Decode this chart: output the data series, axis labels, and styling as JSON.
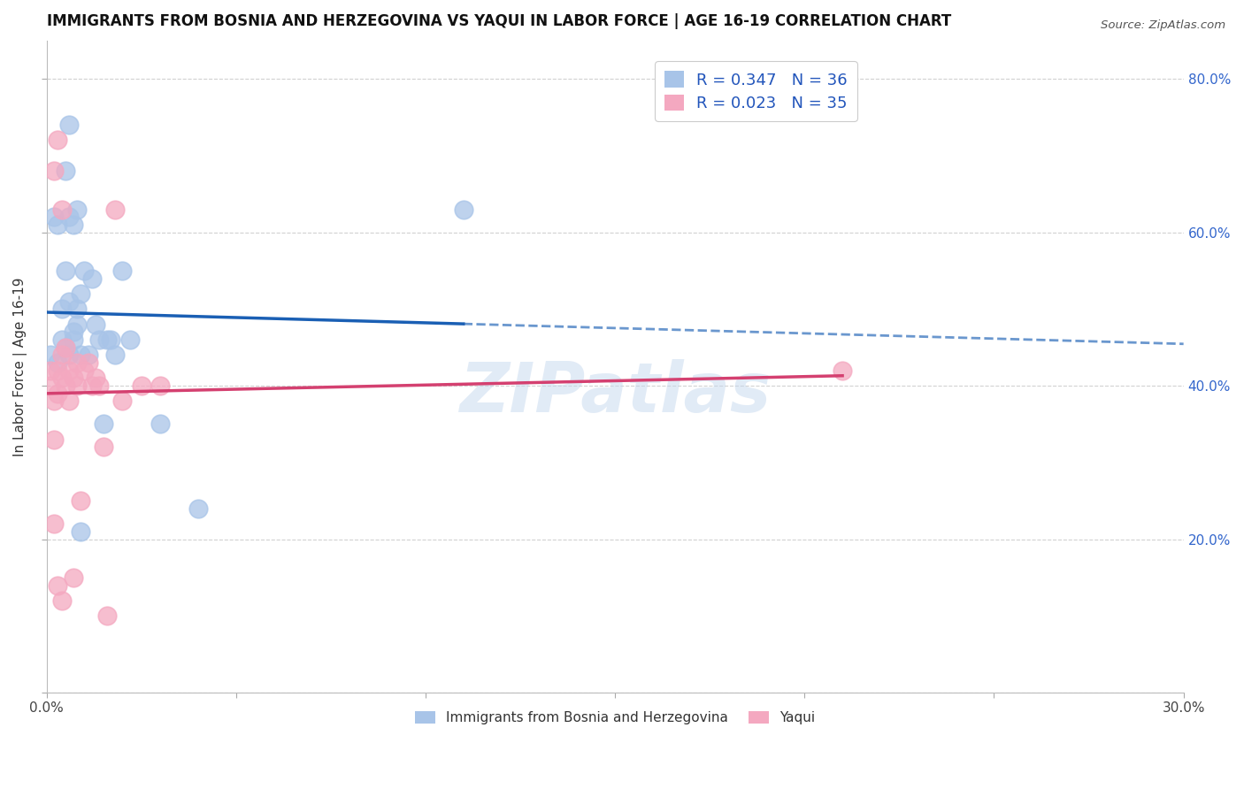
{
  "title": "IMMIGRANTS FROM BOSNIA AND HERZEGOVINA VS YAQUI IN LABOR FORCE | AGE 16-19 CORRELATION CHART",
  "source": "Source: ZipAtlas.com",
  "ylabel": "In Labor Force | Age 16-19",
  "legend_bosnia_R": "0.347",
  "legend_bosnia_N": "36",
  "legend_yaqui_R": "0.023",
  "legend_yaqui_N": "35",
  "legend_label_1": "Immigrants from Bosnia and Herzegovina",
  "legend_label_2": "Yaqui",
  "watermark": "ZIPatlas",
  "xlim": [
    0.0,
    0.3
  ],
  "ylim": [
    0.0,
    0.85
  ],
  "bosnia_color": "#a8c4e8",
  "yaqui_color": "#f4a8c0",
  "bosnia_line_color": "#1a5fb4",
  "yaqui_line_color": "#d44070",
  "grid_color": "#cccccc",
  "background_color": "#ffffff",
  "bosnia_scatter_x": [
    0.001,
    0.002,
    0.003,
    0.004,
    0.005,
    0.005,
    0.006,
    0.006,
    0.007,
    0.007,
    0.008,
    0.008,
    0.009,
    0.009,
    0.01,
    0.011,
    0.012,
    0.013,
    0.014,
    0.015,
    0.016,
    0.017,
    0.018,
    0.02,
    0.022,
    0.03,
    0.04,
    0.11,
    0.003,
    0.004,
    0.005,
    0.006,
    0.007,
    0.008,
    0.009,
    0.006
  ],
  "bosnia_scatter_y": [
    0.44,
    0.62,
    0.61,
    0.5,
    0.55,
    0.68,
    0.62,
    0.51,
    0.46,
    0.61,
    0.5,
    0.48,
    0.52,
    0.44,
    0.55,
    0.44,
    0.54,
    0.48,
    0.46,
    0.35,
    0.46,
    0.46,
    0.44,
    0.55,
    0.46,
    0.35,
    0.24,
    0.63,
    0.43,
    0.46,
    0.45,
    0.44,
    0.47,
    0.63,
    0.21,
    0.74
  ],
  "yaqui_scatter_x": [
    0.001,
    0.001,
    0.002,
    0.002,
    0.003,
    0.003,
    0.003,
    0.004,
    0.004,
    0.004,
    0.005,
    0.005,
    0.006,
    0.006,
    0.007,
    0.007,
    0.008,
    0.008,
    0.009,
    0.01,
    0.011,
    0.012,
    0.013,
    0.014,
    0.015,
    0.016,
    0.018,
    0.02,
    0.025,
    0.03,
    0.002,
    0.003,
    0.004,
    0.21,
    0.002
  ],
  "yaqui_scatter_y": [
    0.4,
    0.42,
    0.38,
    0.68,
    0.42,
    0.39,
    0.14,
    0.41,
    0.44,
    0.12,
    0.4,
    0.45,
    0.38,
    0.42,
    0.41,
    0.15,
    0.43,
    0.4,
    0.25,
    0.42,
    0.43,
    0.4,
    0.41,
    0.4,
    0.32,
    0.1,
    0.63,
    0.38,
    0.4,
    0.4,
    0.33,
    0.72,
    0.63,
    0.42,
    0.22
  ]
}
